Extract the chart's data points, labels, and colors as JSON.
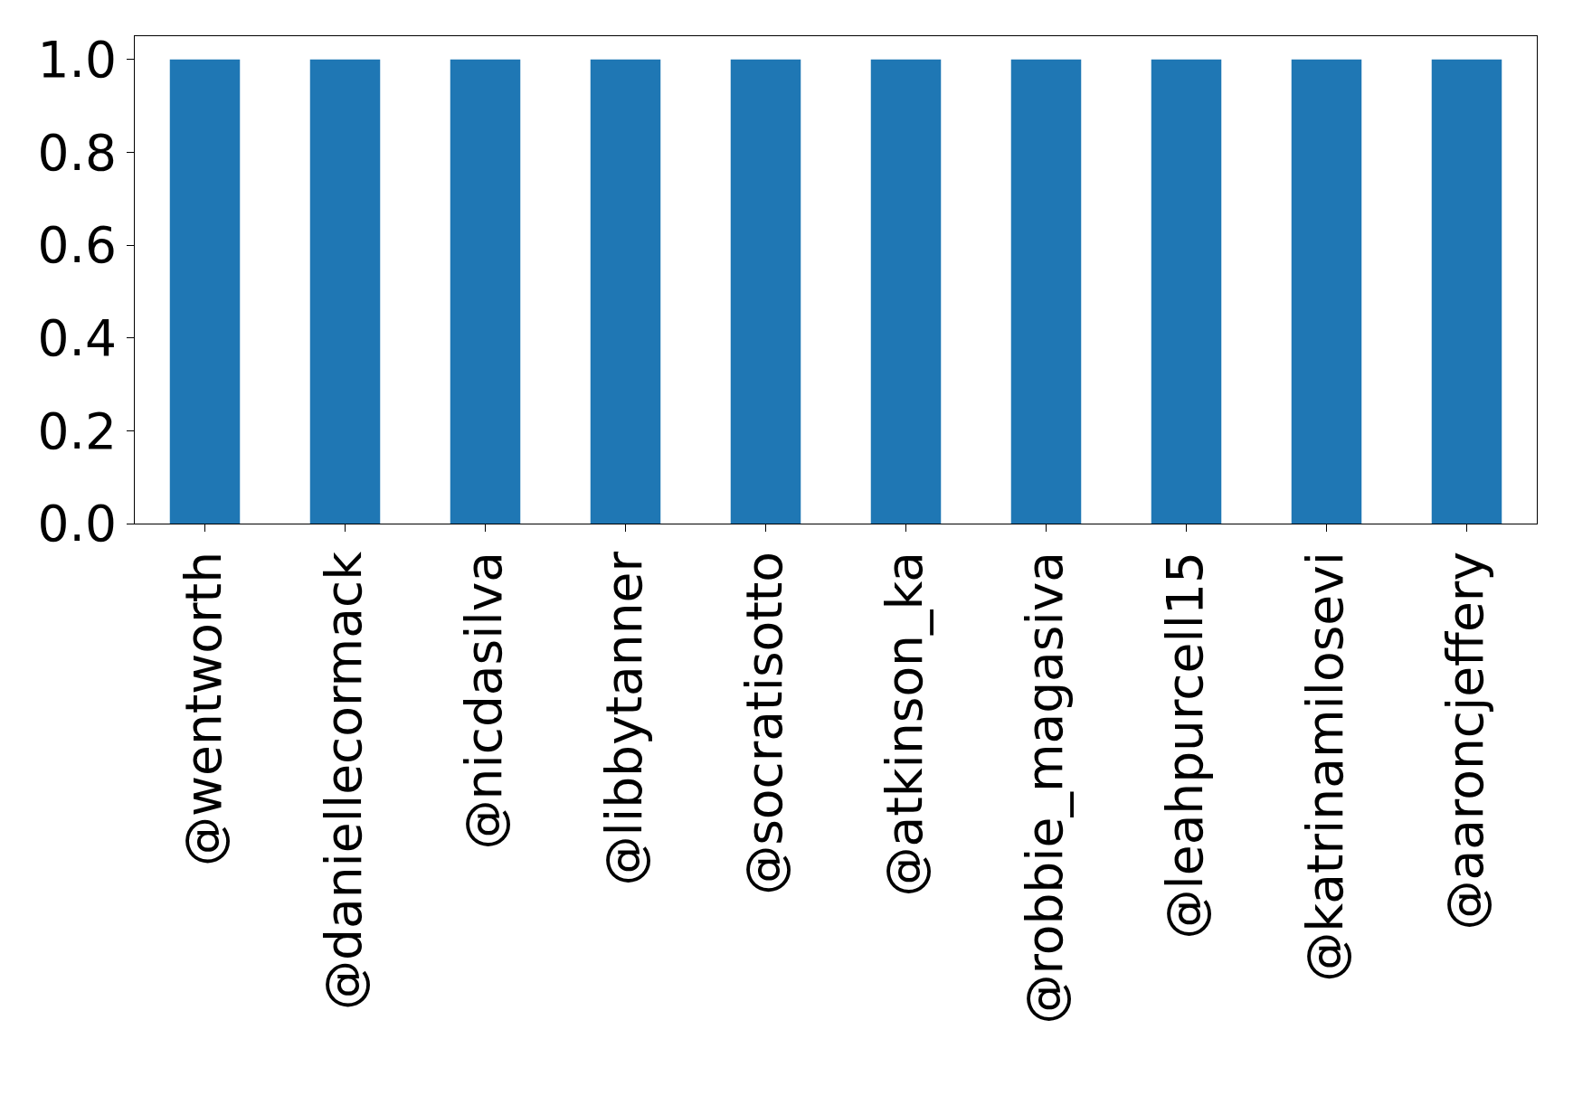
{
  "chart_data": {
    "type": "bar",
    "categories": [
      "@wentworth",
      "@daniellecormack",
      "@nicdasilva",
      "@libbytanner",
      "@socratisotto",
      "@atkinson_ka",
      "@robbie_magasiva",
      "@leahpurcell15",
      "@katrinamilosevi",
      "@aaroncjeffery"
    ],
    "values": [
      1,
      1,
      1,
      1,
      1,
      1,
      1,
      1,
      1,
      1
    ],
    "color": "#1f77b4",
    "ylim": [
      0,
      1.05
    ],
    "yticks": [
      {
        "value": 0,
        "label": "0.0"
      },
      {
        "value": 0.2,
        "label": "0.2"
      },
      {
        "value": 0.4,
        "label": "0.4"
      },
      {
        "value": 0.6,
        "label": "0.6"
      },
      {
        "value": 0.8,
        "label": "0.8"
      },
      {
        "value": 1,
        "label": "1.0"
      }
    ],
    "grid": false
  }
}
